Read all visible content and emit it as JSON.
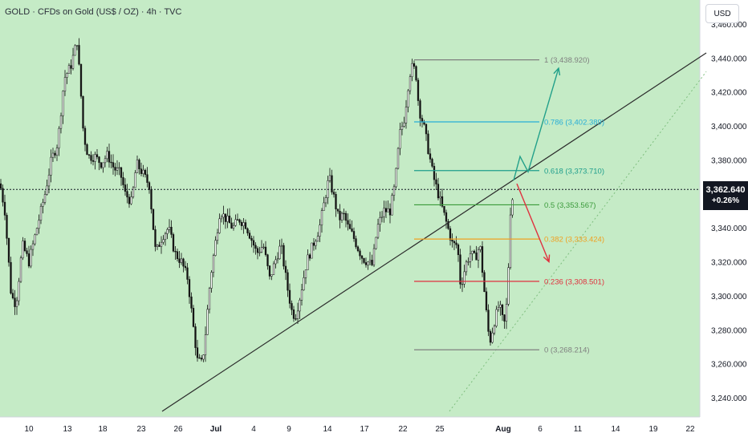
{
  "header": {
    "title": "GOLD · CFDs on Gold (US$ / OZ) · 4h · TVC",
    "currency": "USD"
  },
  "price_badge": {
    "price": "3,362.640",
    "change": "+0.26%"
  },
  "colors": {
    "background": "#ffffff",
    "plot_background": "#c5ebc6",
    "candles": "#111111",
    "trendline": "#2b2b2b",
    "projection_up": "#22a08a",
    "projection_down": "#e0303e",
    "fib_1": "#7f7f7f",
    "fib_0786": "#27aed6",
    "fib_0618": "#1e9e8c",
    "fib_05": "#3a9a3a",
    "fib_0382": "#f0a020",
    "fib_0236": "#e0303e",
    "fib_0": "#7f7f7f"
  },
  "chart_data": {
    "type": "candlestick",
    "symbol": "GOLD",
    "timeframe": "4h",
    "y_axis": {
      "range": [
        3228,
        3466
      ],
      "ticks": [
        3240,
        3260,
        3280,
        3300,
        3320,
        3340,
        3360,
        3380,
        3400,
        3420,
        3440
      ],
      "tick_labels": [
        "3,240.000",
        "3,260.000",
        "3,280.000",
        "3,300.000",
        "3,320.000",
        "3,340.000",
        "3,360.000",
        "3,380.000",
        "3,400.000",
        "3,420.000",
        "3,440.000"
      ],
      "top_partial_label": "3,460.000"
    },
    "x_axis": {
      "tick_labels": [
        "10",
        "13",
        "18",
        "23",
        "26",
        "Jul",
        "4",
        "9",
        "14",
        "17",
        "22",
        "25",
        "Aug",
        "6",
        "11",
        "14",
        "19",
        "22"
      ],
      "bold_labels": [
        "Jul",
        "Aug"
      ]
    },
    "current_price": 3362.64,
    "change_percent": "+0.26%",
    "price_path_anchors": [
      [
        0,
        3366
      ],
      [
        6,
        3350
      ],
      [
        14,
        3300
      ],
      [
        20,
        3295
      ],
      [
        28,
        3330
      ],
      [
        36,
        3320
      ],
      [
        46,
        3340
      ],
      [
        56,
        3360
      ],
      [
        64,
        3380
      ],
      [
        72,
        3390
      ],
      [
        80,
        3428
      ],
      [
        88,
        3435
      ],
      [
        96,
        3450
      ],
      [
        100,
        3425
      ],
      [
        104,
        3395
      ],
      [
        110,
        3382
      ],
      [
        118,
        3382
      ],
      [
        126,
        3378
      ],
      [
        134,
        3383
      ],
      [
        142,
        3375
      ],
      [
        150,
        3372
      ],
      [
        156,
        3360
      ],
      [
        164,
        3355
      ],
      [
        170,
        3378
      ],
      [
        178,
        3372
      ],
      [
        186,
        3365
      ],
      [
        194,
        3325
      ],
      [
        202,
        3335
      ],
      [
        210,
        3340
      ],
      [
        218,
        3325
      ],
      [
        226,
        3320
      ],
      [
        234,
        3310
      ],
      [
        240,
        3285
      ],
      [
        246,
        3262
      ],
      [
        252,
        3260
      ],
      [
        256,
        3278
      ],
      [
        262,
        3310
      ],
      [
        268,
        3330
      ],
      [
        274,
        3350
      ],
      [
        282,
        3345
      ],
      [
        290,
        3340
      ],
      [
        298,
        3345
      ],
      [
        306,
        3342
      ],
      [
        312,
        3335
      ],
      [
        320,
        3325
      ],
      [
        328,
        3330
      ],
      [
        336,
        3310
      ],
      [
        344,
        3322
      ],
      [
        350,
        3330
      ],
      [
        358,
        3305
      ],
      [
        364,
        3290
      ],
      [
        368,
        3288
      ],
      [
        374,
        3300
      ],
      [
        382,
        3320
      ],
      [
        390,
        3330
      ],
      [
        398,
        3340
      ],
      [
        404,
        3355
      ],
      [
        410,
        3370
      ],
      [
        416,
        3358
      ],
      [
        422,
        3345
      ],
      [
        428,
        3348
      ],
      [
        434,
        3340
      ],
      [
        440,
        3335
      ],
      [
        446,
        3328
      ],
      [
        452,
        3322
      ],
      [
        458,
        3320
      ],
      [
        464,
        3318
      ],
      [
        470,
        3340
      ],
      [
        478,
        3350
      ],
      [
        486,
        3350
      ],
      [
        492,
        3365
      ],
      [
        498,
        3395
      ],
      [
        504,
        3405
      ],
      [
        510,
        3430
      ],
      [
        514,
        3435
      ],
      [
        518,
        3432
      ],
      [
        522,
        3410
      ],
      [
        528,
        3400
      ],
      [
        534,
        3385
      ],
      [
        540,
        3370
      ],
      [
        546,
        3360
      ],
      [
        552,
        3350
      ],
      [
        558,
        3340
      ],
      [
        564,
        3330
      ],
      [
        570,
        3330
      ],
      [
        574,
        3305
      ],
      [
        580,
        3318
      ],
      [
        586,
        3325
      ],
      [
        592,
        3322
      ],
      [
        598,
        3330
      ],
      [
        602,
        3310
      ],
      [
        606,
        3290
      ],
      [
        610,
        3272
      ],
      [
        616,
        3285
      ],
      [
        622,
        3295
      ],
      [
        628,
        3282
      ],
      [
        632,
        3298
      ],
      [
        636,
        3350
      ],
      [
        640,
        3362
      ]
    ],
    "trendline": {
      "from": [
        202,
        3232
      ],
      "to": [
        880,
        3443
      ]
    },
    "dotted_trendline": {
      "from": [
        560,
        3232
      ],
      "to": [
        880,
        3432
      ]
    },
    "fibonacci": {
      "x_start": 516,
      "x_end": 672,
      "levels": [
        {
          "ratio": "1",
          "price": 3438.92,
          "label": "1 (3,438.920)",
          "color_key": "fib_1"
        },
        {
          "ratio": "0.786",
          "price": 3402.389,
          "label": "0.786 (3,402.389)",
          "color_key": "fib_0786"
        },
        {
          "ratio": "0.618",
          "price": 3373.71,
          "label": "0.618 (3,373.710)",
          "color_key": "fib_0618"
        },
        {
          "ratio": "0.5",
          "price": 3353.567,
          "label": "0.5 (3,353.567)",
          "color_key": "fib_05"
        },
        {
          "ratio": "0.382",
          "price": 3333.424,
          "label": "0.382 (3,333.424)",
          "color_key": "fib_0382"
        },
        {
          "ratio": "0.236",
          "price": 3308.501,
          "label": "0.236 (3,308.501)",
          "color_key": "fib_0236"
        },
        {
          "ratio": "0",
          "price": 3268.214,
          "label": "0 (3,268.214)",
          "color_key": "fib_0"
        }
      ]
    },
    "projections": [
      {
        "direction": "up",
        "points": [
          [
            640,
            3368
          ],
          [
            648,
            3382
          ],
          [
            658,
            3373
          ],
          [
            696,
            3434
          ]
        ],
        "color_key": "projection_up"
      },
      {
        "direction": "down",
        "points": [
          [
            644,
            3366
          ],
          [
            684,
            3320
          ]
        ],
        "color_key": "projection_down"
      }
    ]
  }
}
